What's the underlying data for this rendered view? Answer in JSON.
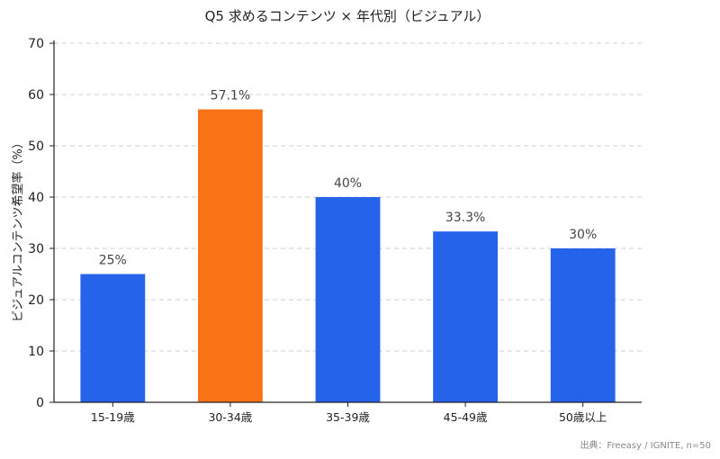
{
  "chart_data": {
    "type": "bar",
    "title": "Q5 求めるコンテンツ × 年代別（ビジュアル）",
    "xlabel": "",
    "ylabel": "ビジュアルコンテンツ希望率（%）",
    "categories": [
      "15-19歳",
      "30-34歳",
      "35-39歳",
      "45-49歳",
      "50歳以上"
    ],
    "values": [
      25,
      57.1,
      40,
      33.3,
      30
    ],
    "data_labels": [
      "25%",
      "57.1%",
      "40%",
      "33.3%",
      "30%"
    ],
    "colors": [
      "#2563eb",
      "#f97316",
      "#2563eb",
      "#2563eb",
      "#2563eb"
    ],
    "ylim": [
      0,
      70
    ],
    "yticks": [
      0,
      10,
      20,
      30,
      40,
      50,
      60,
      70
    ],
    "grid": true,
    "grid_axis": "y"
  },
  "source": "出典：Freeasy / IGNITE, n=50"
}
